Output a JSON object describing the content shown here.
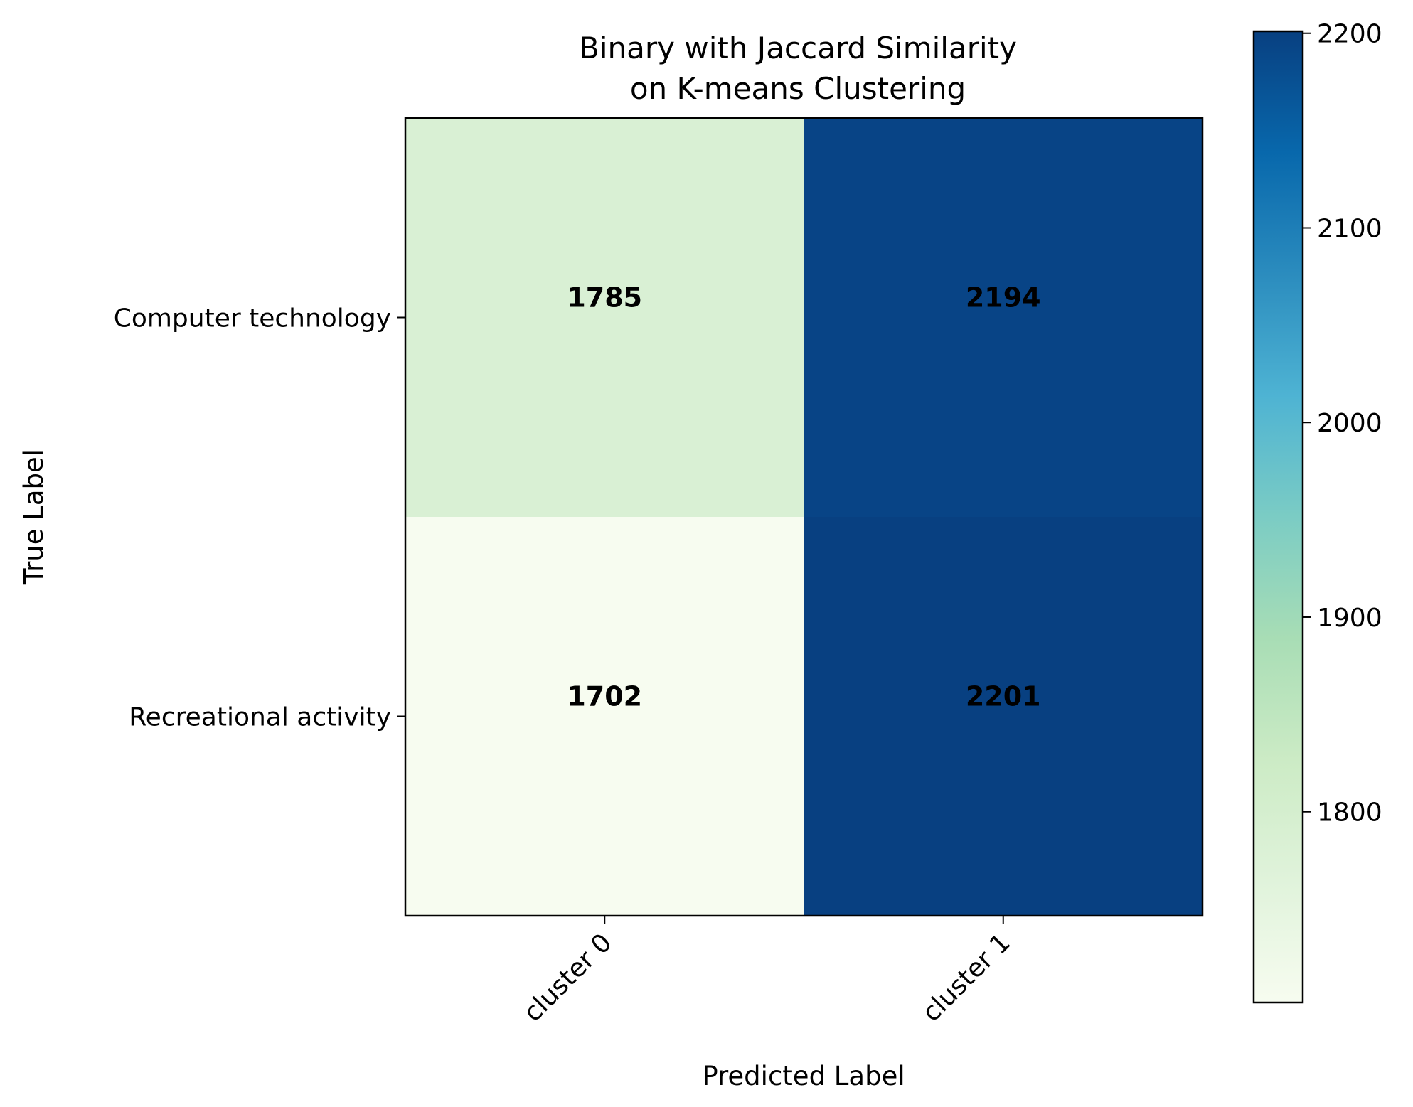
{
  "chart_data": {
    "type": "heatmap",
    "title_lines": [
      "Binary with Jaccard Similarity",
      "on K-means Clustering"
    ],
    "xlabel": "Predicted Label",
    "ylabel": "True Label",
    "x_categories": [
      "cluster 0",
      "cluster 1"
    ],
    "y_categories": [
      "Computer technology",
      "Recreational activity"
    ],
    "values": [
      [
        1785,
        2194
      ],
      [
        1702,
        2201
      ]
    ],
    "colorbar": {
      "colormap": "GnBu",
      "min": 1702,
      "max": 2201,
      "ticks": [
        1800,
        1900,
        2000,
        2100,
        2200
      ]
    },
    "colors": {
      "gnbu_stops": [
        "#f7fcf0",
        "#e0f3db",
        "#ccebc5",
        "#a8ddb5",
        "#7bccc4",
        "#4eb3d3",
        "#2b8cbe",
        "#0868ac",
        "#084081"
      ]
    }
  }
}
